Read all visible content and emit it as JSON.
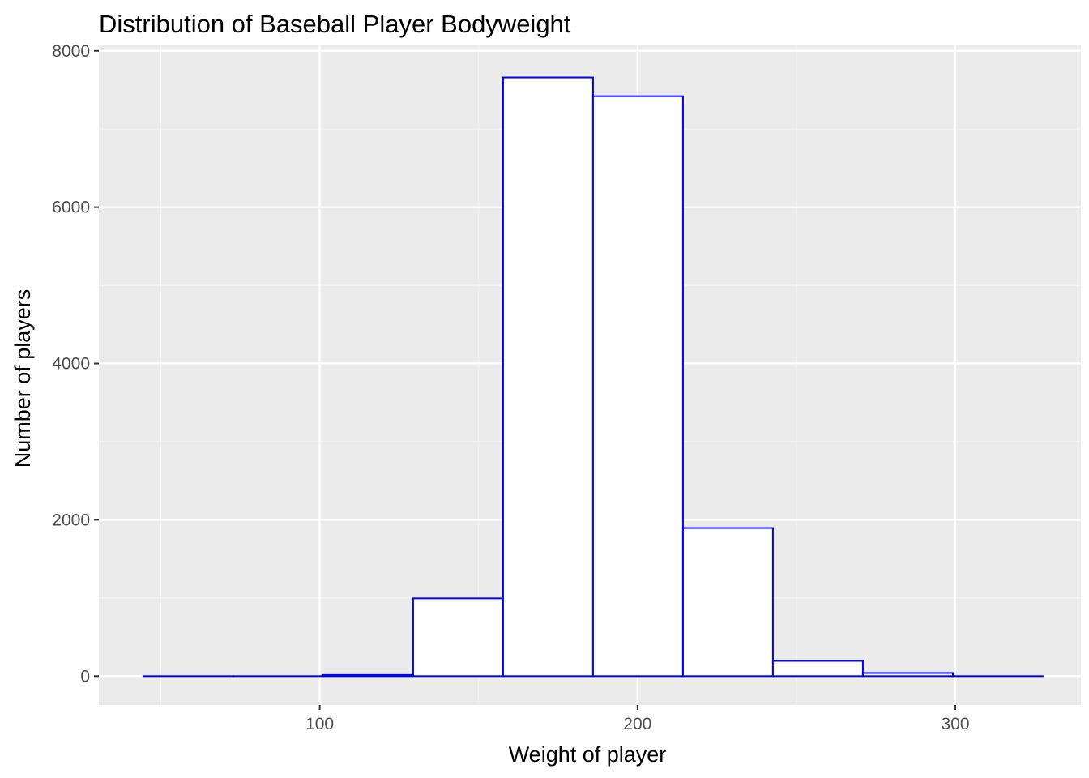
{
  "chart_data": {
    "type": "bar",
    "subtype": "histogram",
    "title": "Distribution of Baseball Player Bodyweight",
    "xlabel": "Weight of player",
    "ylabel": "Number of players",
    "xlim": [
      30.5,
      339.5
    ],
    "ylim": [
      -370,
      8070
    ],
    "x_ticks": [
      100,
      200,
      300
    ],
    "x_minor_ticks": [
      50,
      150,
      250
    ],
    "y_ticks": [
      0,
      2000,
      4000,
      6000,
      8000
    ],
    "y_minor_ticks": [
      1000,
      3000,
      5000,
      7000
    ],
    "grid": true,
    "bins": [
      {
        "x0": 44.5,
        "x1": 72.8,
        "count": 0
      },
      {
        "x0": 72.8,
        "x1": 101.1,
        "count": 0
      },
      {
        "x0": 101.1,
        "x1": 129.4,
        "count": 15
      },
      {
        "x0": 129.4,
        "x1": 157.7,
        "count": 995
      },
      {
        "x0": 157.7,
        "x1": 186.0,
        "count": 7660
      },
      {
        "x0": 186.0,
        "x1": 214.3,
        "count": 7420
      },
      {
        "x0": 214.3,
        "x1": 242.6,
        "count": 1895
      },
      {
        "x0": 242.6,
        "x1": 270.9,
        "count": 195
      },
      {
        "x0": 270.9,
        "x1": 299.2,
        "count": 40
      },
      {
        "x0": 299.2,
        "x1": 327.5,
        "count": 0
      }
    ],
    "colors": {
      "panel_background": "#ebebeb",
      "grid_major": "#ffffff",
      "grid_minor": "#f5f5f5",
      "bar_fill": "#ffffff",
      "bar_outline": "#0000ff",
      "tick_text": "#4d4d4d",
      "tick_mark": "#333333"
    }
  }
}
